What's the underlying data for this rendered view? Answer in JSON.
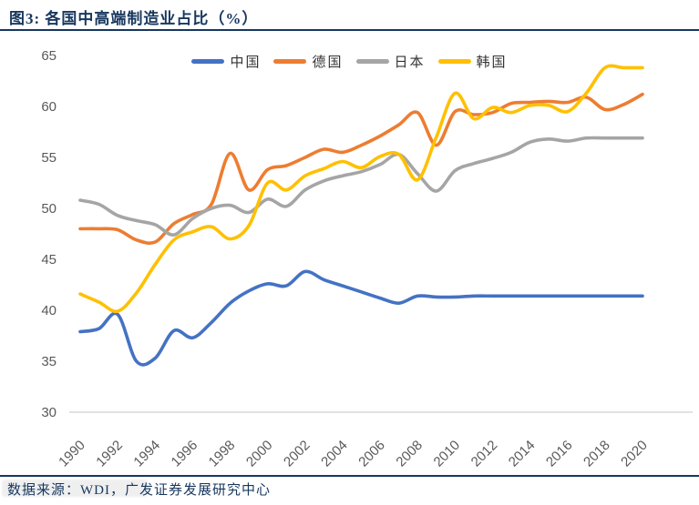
{
  "header": {
    "title": "图3:  各国中高端制造业占比（%）"
  },
  "footer": {
    "source": "数据来源：WDI，广发证券发展研究中心"
  },
  "theme": {
    "accent": "#17375E",
    "axis_line_color": "#D9D9D9",
    "tick_label_color": "#595959"
  },
  "chart_data": {
    "type": "line",
    "title": "各国中高端制造业占比（%）",
    "xlabel": "",
    "ylabel": "",
    "grid": false,
    "smooth": true,
    "legend_position": "top",
    "ylim": [
      30,
      65
    ],
    "y_ticks": [
      30,
      35,
      40,
      45,
      50,
      55,
      60,
      65
    ],
    "x_tick_labels": [
      "1990",
      "1992",
      "1994",
      "1996",
      "1998",
      "2000",
      "2002",
      "2004",
      "2006",
      "2008",
      "2010",
      "2012",
      "2014",
      "2016",
      "2018",
      "2020"
    ],
    "x": [
      1990,
      1991,
      1992,
      1993,
      1994,
      1995,
      1996,
      1997,
      1998,
      1999,
      2000,
      2001,
      2002,
      2003,
      2004,
      2005,
      2006,
      2007,
      2008,
      2009,
      2010,
      2011,
      2012,
      2013,
      2014,
      2015,
      2016,
      2017,
      2018,
      2019,
      2020
    ],
    "series": [
      {
        "name": "中国",
        "color": "#4472C4",
        "values": [
          37.9,
          38.2,
          39.6,
          35.0,
          35.3,
          38.0,
          37.3,
          38.8,
          40.7,
          41.9,
          42.6,
          42.4,
          43.8,
          43.0,
          42.4,
          41.8,
          41.2,
          40.7,
          41.4,
          41.3,
          41.3,
          41.4,
          41.4,
          41.4,
          41.4,
          41.4,
          41.4,
          41.4,
          41.4,
          41.4,
          41.4
        ]
      },
      {
        "name": "德国",
        "color": "#ED7D31",
        "values": [
          48.0,
          48.0,
          47.9,
          46.9,
          46.7,
          48.5,
          49.4,
          50.4,
          55.4,
          51.8,
          53.8,
          54.2,
          55.0,
          55.8,
          55.5,
          56.2,
          57.1,
          58.2,
          59.4,
          56.2,
          59.5,
          59.2,
          59.4,
          60.3,
          60.4,
          60.5,
          60.4,
          60.9,
          59.7,
          60.2,
          61.2
        ]
      },
      {
        "name": "日本",
        "color": "#A5A5A5",
        "values": [
          50.8,
          50.4,
          49.3,
          48.8,
          48.4,
          47.4,
          49.0,
          50.0,
          50.3,
          49.6,
          50.9,
          50.2,
          51.8,
          52.7,
          53.2,
          53.6,
          54.3,
          55.3,
          53.4,
          51.7,
          53.7,
          54.4,
          54.9,
          55.5,
          56.5,
          56.8,
          56.6,
          56.9,
          56.9,
          56.9,
          56.9
        ]
      },
      {
        "name": "韩国",
        "color": "#FFC000",
        "values": [
          41.6,
          40.8,
          39.9,
          41.7,
          44.5,
          46.9,
          47.7,
          48.2,
          47.0,
          48.3,
          52.5,
          51.8,
          53.2,
          53.9,
          54.6,
          54.0,
          55.1,
          55.3,
          52.8,
          57.0,
          61.3,
          58.8,
          59.9,
          59.4,
          60.1,
          60.1,
          59.5,
          61.3,
          63.8,
          63.8,
          63.8
        ]
      }
    ]
  }
}
